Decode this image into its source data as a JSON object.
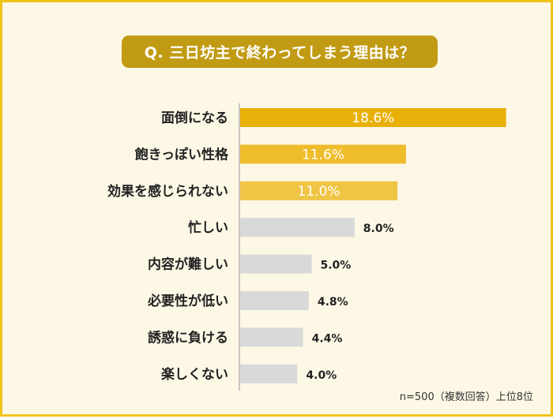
{
  "title": "Q. 三日坊主で終わってしまう理由は？",
  "note": "n=500（複数回答）上位8位",
  "colors": {
    "frame_border": "#f0c419",
    "frame_background": "#fdf8e6",
    "title_background": "#c19b14",
    "bar_top1": "#e8b10a",
    "bar_top2": "#efbd2b",
    "bar_top3": "#f0c445",
    "bar_other": "#d9d9d9",
    "axis": "#b5b5b5"
  },
  "chart_data": {
    "type": "bar",
    "orientation": "horizontal",
    "title": "Q. 三日坊主で終わってしまう理由は？",
    "categories": [
      "面倒になる",
      "飽きっぽい性格",
      "効果を感じられない",
      "忙しい",
      "内容が難しい",
      "必要性が低い",
      "誘惑に負ける",
      "楽しくない"
    ],
    "values": [
      18.6,
      11.6,
      11.0,
      8.0,
      5.0,
      4.8,
      4.4,
      4.0
    ],
    "value_labels": [
      "18.6%",
      "11.6%",
      "11.0%",
      "8.0%",
      "5.0%",
      "4.8%",
      "4.4%",
      "4.0%"
    ],
    "highlighted_top": 3,
    "unit": "%",
    "grid": false,
    "legend": "none"
  }
}
